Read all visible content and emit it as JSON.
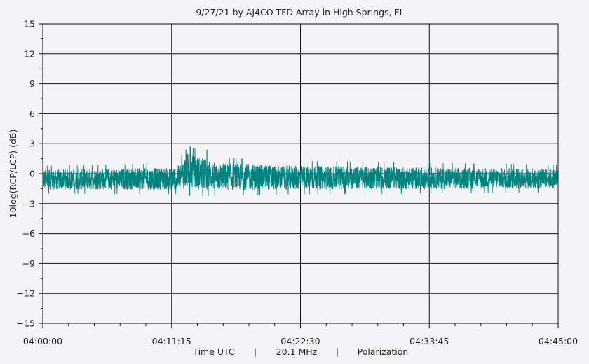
{
  "chart_data": {
    "type": "line",
    "title": "9/27/21  by  AJ4CO TFD Array  in  High Springs, FL",
    "ylabel": "10log(RCP/LCP)  (dB)",
    "xlabel_parts": [
      "Time UTC",
      "|",
      "20.1 MHz",
      "|",
      "Polarization"
    ],
    "ylim": [
      -15,
      15
    ],
    "y_ticks": [
      15,
      12,
      9,
      6,
      3,
      0,
      -3,
      -6,
      -9,
      -12,
      -15
    ],
    "y_tick_labels": [
      "15",
      "12",
      "9",
      "6",
      "3",
      "0",
      "−3",
      "−6",
      "−9",
      "−12",
      "−15"
    ],
    "x_range_seconds": [
      0,
      2700
    ],
    "x_ticks_seconds": [
      0,
      675,
      1350,
      2025,
      2700
    ],
    "x_tick_labels": [
      "04:00:00",
      "04:11:15",
      "04:22:30",
      "04:33:45",
      "04:45:00"
    ],
    "grid": true,
    "series": [
      {
        "color": "#00827f",
        "description_points": [
          {
            "t": 0,
            "mean": -0.6,
            "spread": 1.0
          },
          {
            "t": 700,
            "mean": -0.5,
            "spread": 1.1
          },
          {
            "t": 760,
            "mean": 0.3,
            "spread": 1.8
          },
          {
            "t": 900,
            "mean": -0.3,
            "spread": 1.4
          },
          {
            "t": 1300,
            "mean": -0.4,
            "spread": 1.2
          },
          {
            "t": 2700,
            "mean": -0.5,
            "spread": 1.0
          }
        ],
        "peaks": [
          {
            "t": 750,
            "y": 2.4
          },
          {
            "t": 770,
            "y": -2.2
          },
          {
            "t": 860,
            "y": 2.4
          },
          {
            "t": 1040,
            "y": 1.5
          }
        ]
      }
    ]
  }
}
